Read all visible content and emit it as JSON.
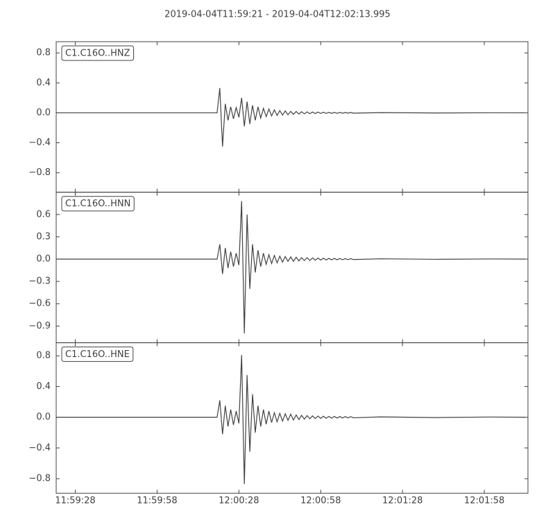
{
  "chart_data": [
    {
      "type": "line",
      "title": "2019-04-04T11:59:21  -  2019-04-04T12:02:13.995",
      "x": [
        "11:59:21",
        "12:00:20",
        "12:00:21",
        "12:00:22",
        "12:00:23",
        "12:00:24",
        "12:00:25",
        "12:00:26",
        "12:00:27",
        "12:00:28",
        "12:00:29",
        "12:00:30",
        "12:00:31",
        "12:00:32",
        "12:00:33",
        "12:00:34",
        "12:00:35",
        "12:00:36",
        "12:00:37",
        "12:00:38",
        "12:00:39",
        "12:00:40",
        "12:00:41",
        "12:00:42",
        "12:00:43",
        "12:00:44",
        "12:00:45",
        "12:00:46",
        "12:00:47",
        "12:00:48",
        "12:00:49",
        "12:00:50",
        "12:00:51",
        "12:00:52",
        "12:00:53",
        "12:00:54",
        "12:00:55",
        "12:00:56",
        "12:00:57",
        "12:00:58",
        "12:00:59",
        "12:01:00",
        "12:01:01",
        "12:01:02",
        "12:01:03",
        "12:01:04",
        "12:01:05",
        "12:01:06",
        "12:01:07",
        "12:01:08",
        "12:01:09",
        "12:01:10",
        "12:01:20",
        "12:01:40",
        "12:02:00",
        "12:02:13"
      ],
      "xlim": [
        "11:59:21",
        "12:02:13.995"
      ],
      "ylim": [
        -1.06,
        0.95
      ],
      "yticks": [
        {
          "value": -0.8,
          "label": "−0.8"
        },
        {
          "value": -0.4,
          "label": "−0.4"
        },
        {
          "value": 0,
          "label": "0.0"
        },
        0.4,
        0.8
      ],
      "series": [
        {
          "name": "C1.C16O..HNZ",
          "color": "#404040",
          "values": [
            0,
            0,
            0.33,
            -0.45,
            0.12,
            -0.1,
            0.08,
            -0.08,
            0.07,
            -0.06,
            0.2,
            -0.18,
            0.15,
            -0.15,
            0.1,
            -0.1,
            0.08,
            -0.07,
            0.06,
            -0.05,
            0.05,
            -0.04,
            0.04,
            -0.035,
            0.03,
            -0.03,
            0.025,
            -0.025,
            0.02,
            -0.02,
            0.018,
            -0.016,
            0.015,
            -0.014,
            0.013,
            -0.012,
            0.011,
            -0.01,
            0.01,
            -0.009,
            0.008,
            -0.008,
            0.007,
            -0.007,
            0.006,
            -0.006,
            0.005,
            -0.005,
            0.005,
            -0.004,
            0.004,
            -0.004,
            0.003,
            -0.002,
            0.001,
            0
          ]
        }
      ]
    },
    {
      "type": "line",
      "x": [
        "11:59:21",
        "12:00:20",
        "12:00:21",
        "12:00:22",
        "12:00:23",
        "12:00:24",
        "12:00:25",
        "12:00:26",
        "12:00:27",
        "12:00:28",
        "12:00:29",
        "12:00:30",
        "12:00:31",
        "12:00:32",
        "12:00:33",
        "12:00:34",
        "12:00:35",
        "12:00:36",
        "12:00:37",
        "12:00:38",
        "12:00:39",
        "12:00:40",
        "12:00:41",
        "12:00:42",
        "12:00:43",
        "12:00:44",
        "12:00:45",
        "12:00:46",
        "12:00:47",
        "12:00:48",
        "12:00:49",
        "12:00:50",
        "12:00:51",
        "12:00:52",
        "12:00:53",
        "12:00:54",
        "12:00:55",
        "12:00:56",
        "12:00:57",
        "12:00:58",
        "12:00:59",
        "12:01:00",
        "12:01:01",
        "12:01:02",
        "12:01:03",
        "12:01:04",
        "12:01:05",
        "12:01:06",
        "12:01:07",
        "12:01:08",
        "12:01:09",
        "12:01:10",
        "12:01:20",
        "12:01:40",
        "12:02:00",
        "12:02:13"
      ],
      "xlim": [
        "11:59:21",
        "12:02:13.995"
      ],
      "ylim": [
        -1.125,
        0.9
      ],
      "yticks": [
        {
          "value": -0.9,
          "label": "−0.9"
        },
        {
          "value": -0.6,
          "label": "−0.6"
        },
        {
          "value": -0.3,
          "label": "−0.3"
        },
        {
          "value": 0,
          "label": "0.0"
        },
        0.3,
        0.6
      ],
      "series": [
        {
          "name": "C1.C16O..HNN",
          "color": "#404040",
          "values": [
            0,
            0,
            0.2,
            -0.2,
            0.15,
            -0.12,
            0.1,
            -0.1,
            0.08,
            -0.08,
            0.78,
            -1.0,
            0.6,
            -0.4,
            0.2,
            -0.18,
            0.12,
            -0.1,
            0.08,
            -0.07,
            0.06,
            -0.06,
            0.05,
            -0.05,
            0.04,
            -0.04,
            0.035,
            -0.03,
            0.03,
            -0.03,
            0.025,
            -0.025,
            0.02,
            -0.02,
            0.02,
            -0.018,
            0.016,
            -0.015,
            0.014,
            -0.013,
            0.012,
            -0.011,
            0.01,
            -0.01,
            0.009,
            -0.009,
            0.008,
            -0.008,
            0.007,
            -0.007,
            0.006,
            -0.006,
            0.004,
            -0.003,
            0.002,
            0
          ]
        }
      ]
    },
    {
      "type": "line",
      "x": [
        "11:59:21",
        "12:00:20",
        "12:00:21",
        "12:00:22",
        "12:00:23",
        "12:00:24",
        "12:00:25",
        "12:00:26",
        "12:00:27",
        "12:00:28",
        "12:00:29",
        "12:00:30",
        "12:00:31",
        "12:00:32",
        "12:00:33",
        "12:00:34",
        "12:00:35",
        "12:00:36",
        "12:00:37",
        "12:00:38",
        "12:00:39",
        "12:00:40",
        "12:00:41",
        "12:00:42",
        "12:00:43",
        "12:00:44",
        "12:00:45",
        "12:00:46",
        "12:00:47",
        "12:00:48",
        "12:00:49",
        "12:00:50",
        "12:00:51",
        "12:00:52",
        "12:00:53",
        "12:00:54",
        "12:00:55",
        "12:00:56",
        "12:00:57",
        "12:00:58",
        "12:00:59",
        "12:01:00",
        "12:01:01",
        "12:01:02",
        "12:01:03",
        "12:01:04",
        "12:01:05",
        "12:01:06",
        "12:01:07",
        "12:01:08",
        "12:01:09",
        "12:01:10",
        "12:01:20",
        "12:01:40",
        "12:02:00",
        "12:02:13"
      ],
      "xlim": [
        "11:59:21",
        "12:02:13.995"
      ],
      "xticks": [
        "11:59:28",
        "11:59:58",
        "12:00:28",
        "12:00:58",
        "12:01:28",
        "12:01:58"
      ],
      "ylim": [
        -0.99,
        0.97
      ],
      "yticks": [
        {
          "value": -0.8,
          "label": "−0.8"
        },
        {
          "value": -0.4,
          "label": "−0.4"
        },
        {
          "value": 0,
          "label": "0.0"
        },
        0.4,
        0.8
      ],
      "series": [
        {
          "name": "C1.C16O..HNE",
          "color": "#404040",
          "values": [
            0,
            0,
            0.22,
            -0.22,
            0.15,
            -0.12,
            0.1,
            -0.1,
            0.08,
            -0.08,
            0.81,
            -0.87,
            0.55,
            -0.45,
            0.3,
            -0.2,
            0.15,
            -0.12,
            0.1,
            -0.09,
            0.08,
            -0.07,
            0.06,
            -0.06,
            0.05,
            -0.05,
            0.045,
            -0.04,
            0.04,
            -0.035,
            0.03,
            -0.03,
            0.025,
            -0.025,
            0.022,
            -0.02,
            0.018,
            -0.017,
            0.016,
            -0.015,
            0.014,
            -0.013,
            0.012,
            -0.012,
            0.011,
            -0.01,
            0.01,
            -0.009,
            0.009,
            -0.008,
            0.008,
            -0.007,
            0.005,
            -0.004,
            0.003,
            0
          ]
        }
      ]
    }
  ]
}
